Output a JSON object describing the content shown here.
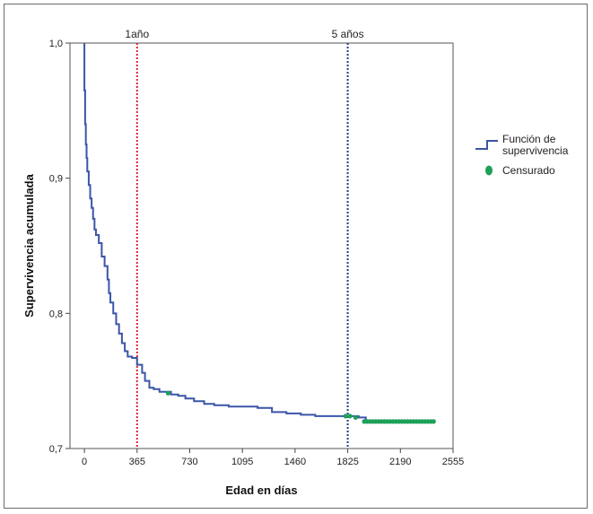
{
  "chart_data": {
    "type": "line",
    "title": "",
    "xlabel": "Edad en días",
    "ylabel": "Supervivencia acumulada",
    "xlim": [
      -100,
      2555
    ],
    "ylim": [
      0.7,
      1.0
    ],
    "x_ticks": [
      0,
      365,
      730,
      1095,
      1460,
      1825,
      2190,
      2555
    ],
    "y_ticks": [
      0.7,
      0.8,
      0.9,
      1.0
    ],
    "y_tick_labels": [
      "0,7",
      "0,8",
      "0,9",
      "1,0"
    ],
    "grid": false,
    "legend": "right",
    "colors": {
      "survival": "#3b55a8",
      "censored": "#1ea05a",
      "line_1yr": "#d8262b",
      "line_5yr": "#2c3a8c"
    },
    "reference_lines": [
      {
        "x": 365,
        "label": "1año",
        "style": "dotted"
      },
      {
        "x": 1825,
        "label": "5 años",
        "style": "dotted"
      }
    ],
    "series": [
      {
        "name": "Función de supervivencia",
        "type": "step",
        "points": [
          [
            0,
            1.0
          ],
          [
            0,
            0.965
          ],
          [
            5,
            0.94
          ],
          [
            10,
            0.925
          ],
          [
            15,
            0.915
          ],
          [
            20,
            0.905
          ],
          [
            30,
            0.895
          ],
          [
            40,
            0.885
          ],
          [
            50,
            0.878
          ],
          [
            60,
            0.87
          ],
          [
            70,
            0.862
          ],
          [
            80,
            0.858
          ],
          [
            100,
            0.852
          ],
          [
            120,
            0.842
          ],
          [
            140,
            0.835
          ],
          [
            160,
            0.825
          ],
          [
            170,
            0.815
          ],
          [
            180,
            0.808
          ],
          [
            200,
            0.8
          ],
          [
            220,
            0.792
          ],
          [
            240,
            0.785
          ],
          [
            260,
            0.778
          ],
          [
            280,
            0.772
          ],
          [
            300,
            0.768
          ],
          [
            330,
            0.767
          ],
          [
            365,
            0.762
          ],
          [
            400,
            0.756
          ],
          [
            420,
            0.75
          ],
          [
            450,
            0.745
          ],
          [
            480,
            0.744
          ],
          [
            520,
            0.742
          ],
          [
            560,
            0.742
          ],
          [
            600,
            0.74
          ],
          [
            650,
            0.739
          ],
          [
            700,
            0.737
          ],
          [
            760,
            0.735
          ],
          [
            830,
            0.733
          ],
          [
            900,
            0.732
          ],
          [
            1000,
            0.731
          ],
          [
            1200,
            0.73
          ],
          [
            1300,
            0.727
          ],
          [
            1400,
            0.726
          ],
          [
            1500,
            0.725
          ],
          [
            1600,
            0.724
          ],
          [
            1800,
            0.724
          ],
          [
            1900,
            0.723
          ],
          [
            1950,
            0.72
          ],
          [
            2430,
            0.72
          ]
        ]
      },
      {
        "name": "Censurado",
        "type": "scatter",
        "x": [
          580,
          1810,
          1840,
          1880,
          1940,
          1960,
          1980,
          2000,
          2020,
          2040,
          2060,
          2080,
          2100,
          2120,
          2140,
          2160,
          2180,
          2200,
          2220,
          2240,
          2260,
          2280,
          2300,
          2320,
          2340,
          2360,
          2380,
          2400,
          2420
        ],
        "y": [
          0.741,
          0.724,
          0.724,
          0.723,
          0.72,
          0.72,
          0.72,
          0.72,
          0.72,
          0.72,
          0.72,
          0.72,
          0.72,
          0.72,
          0.72,
          0.72,
          0.72,
          0.72,
          0.72,
          0.72,
          0.72,
          0.72,
          0.72,
          0.72,
          0.72,
          0.72,
          0.72,
          0.72,
          0.72
        ]
      }
    ]
  }
}
